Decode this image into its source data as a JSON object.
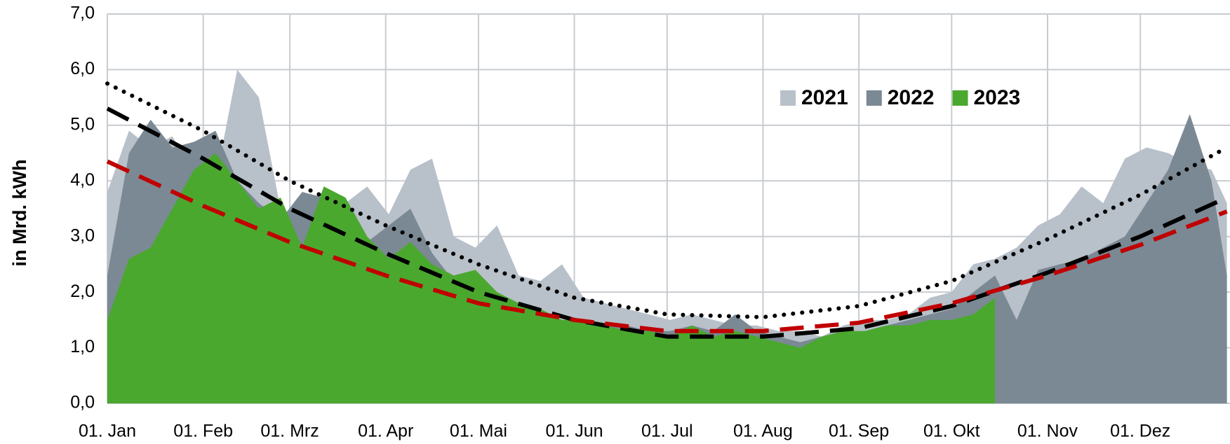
{
  "chart_data": {
    "type": "area",
    "y_label": "in Mrd. kWh",
    "xlim": [
      0,
      363
    ],
    "xticks": [
      {
        "value": 0,
        "label": "01. Jan"
      },
      {
        "value": 31,
        "label": "01. Feb"
      },
      {
        "value": 59,
        "label": "01. Mrz"
      },
      {
        "value": 90,
        "label": "01. Apr"
      },
      {
        "value": 120,
        "label": "01. Mai"
      },
      {
        "value": 151,
        "label": "01. Jun"
      },
      {
        "value": 181,
        "label": "01. Jul"
      },
      {
        "value": 212,
        "label": "01. Aug"
      },
      {
        "value": 243,
        "label": "01. Sep"
      },
      {
        "value": 273,
        "label": "01. Okt"
      },
      {
        "value": 304,
        "label": "01. Nov"
      },
      {
        "value": 334,
        "label": "01. Dez"
      }
    ],
    "ylim": [
      0,
      7
    ],
    "yticks": [
      {
        "value": 0,
        "label": "0,0"
      },
      {
        "value": 1,
        "label": "1,0"
      },
      {
        "value": 2,
        "label": "2,0"
      },
      {
        "value": 3,
        "label": "3,0"
      },
      {
        "value": 4,
        "label": "4,0"
      },
      {
        "value": 5,
        "label": "5,0"
      },
      {
        "value": 6,
        "label": "6,0"
      },
      {
        "value": 7,
        "label": "7,0"
      }
    ],
    "grid": true,
    "legend": "top-center",
    "x": [
      0,
      7,
      14,
      21,
      28,
      35,
      42,
      49,
      56,
      63,
      70,
      77,
      84,
      91,
      98,
      105,
      112,
      119,
      126,
      133,
      140,
      147,
      154,
      161,
      168,
      175,
      182,
      189,
      196,
      203,
      210,
      217,
      224,
      231,
      238,
      245,
      252,
      259,
      266,
      273,
      280,
      287,
      294,
      301,
      308,
      315,
      322,
      329,
      336,
      343,
      350,
      357,
      362
    ],
    "series": [
      {
        "name": "2021",
        "color": "#b8c0c9",
        "values": [
          3.8,
          4.9,
          4.6,
          4.8,
          4.2,
          4.0,
          6.0,
          5.5,
          3.5,
          3.3,
          3.8,
          3.6,
          3.9,
          3.4,
          4.2,
          4.4,
          3.0,
          2.8,
          3.2,
          2.3,
          2.2,
          2.5,
          1.9,
          1.8,
          1.7,
          1.6,
          1.5,
          1.6,
          1.5,
          1.4,
          1.4,
          1.3,
          1.3,
          1.2,
          1.4,
          1.5,
          1.5,
          1.6,
          1.9,
          2.0,
          2.5,
          2.6,
          2.8,
          3.2,
          3.4,
          3.9,
          3.6,
          4.4,
          4.6,
          4.5,
          4.3,
          4.2,
          3.6
        ]
      },
      {
        "name": "2022",
        "color": "#7b8994",
        "values": [
          2.3,
          4.5,
          5.1,
          4.6,
          4.7,
          4.9,
          4.0,
          3.6,
          3.3,
          3.8,
          3.7,
          3.3,
          2.9,
          3.2,
          3.5,
          2.7,
          2.2,
          2.3,
          2.0,
          1.8,
          1.6,
          1.5,
          1.5,
          1.4,
          1.4,
          1.3,
          1.3,
          1.4,
          1.3,
          1.6,
          1.3,
          1.2,
          1.1,
          1.2,
          1.3,
          1.3,
          1.4,
          1.5,
          1.6,
          1.7,
          2.0,
          2.3,
          1.5,
          2.4,
          2.5,
          2.6,
          2.8,
          3.0,
          3.6,
          4.2,
          5.2,
          4.0,
          2.3
        ]
      },
      {
        "name": "2023",
        "color": "#4aa82e",
        "values": [
          1.5,
          2.6,
          2.8,
          3.5,
          4.2,
          4.5,
          4.0,
          3.5,
          3.7,
          2.8,
          3.9,
          3.7,
          3.0,
          2.6,
          2.9,
          2.5,
          2.3,
          2.4,
          2.0,
          1.8,
          1.7,
          1.5,
          1.5,
          1.4,
          1.3,
          1.3,
          1.2,
          1.4,
          1.2,
          1.3,
          1.2,
          1.1,
          1.0,
          1.2,
          1.3,
          1.3,
          1.4,
          1.4,
          1.5,
          1.5,
          1.6,
          1.9,
          null,
          null,
          null,
          null,
          null,
          null,
          null,
          null,
          null,
          null,
          null
        ]
      }
    ],
    "trend_x": [
      0,
      31,
      59,
      90,
      120,
      151,
      181,
      212,
      243,
      273,
      304,
      334,
      362
    ],
    "trends": [
      {
        "color": "#000000",
        "style": "dotted",
        "values": [
          5.75,
          4.9,
          4.0,
          3.2,
          2.5,
          1.9,
          1.6,
          1.55,
          1.75,
          2.2,
          2.95,
          3.75,
          4.6
        ]
      },
      {
        "color": "#000000",
        "style": "dashed",
        "values": [
          5.3,
          4.4,
          3.5,
          2.7,
          2.0,
          1.5,
          1.2,
          1.2,
          1.35,
          1.75,
          2.35,
          3.0,
          3.7
        ]
      },
      {
        "color": "#c00000",
        "style": "dashed",
        "values": [
          4.35,
          3.55,
          2.9,
          2.3,
          1.8,
          1.5,
          1.3,
          1.3,
          1.45,
          1.8,
          2.3,
          2.85,
          3.45
        ]
      }
    ]
  }
}
